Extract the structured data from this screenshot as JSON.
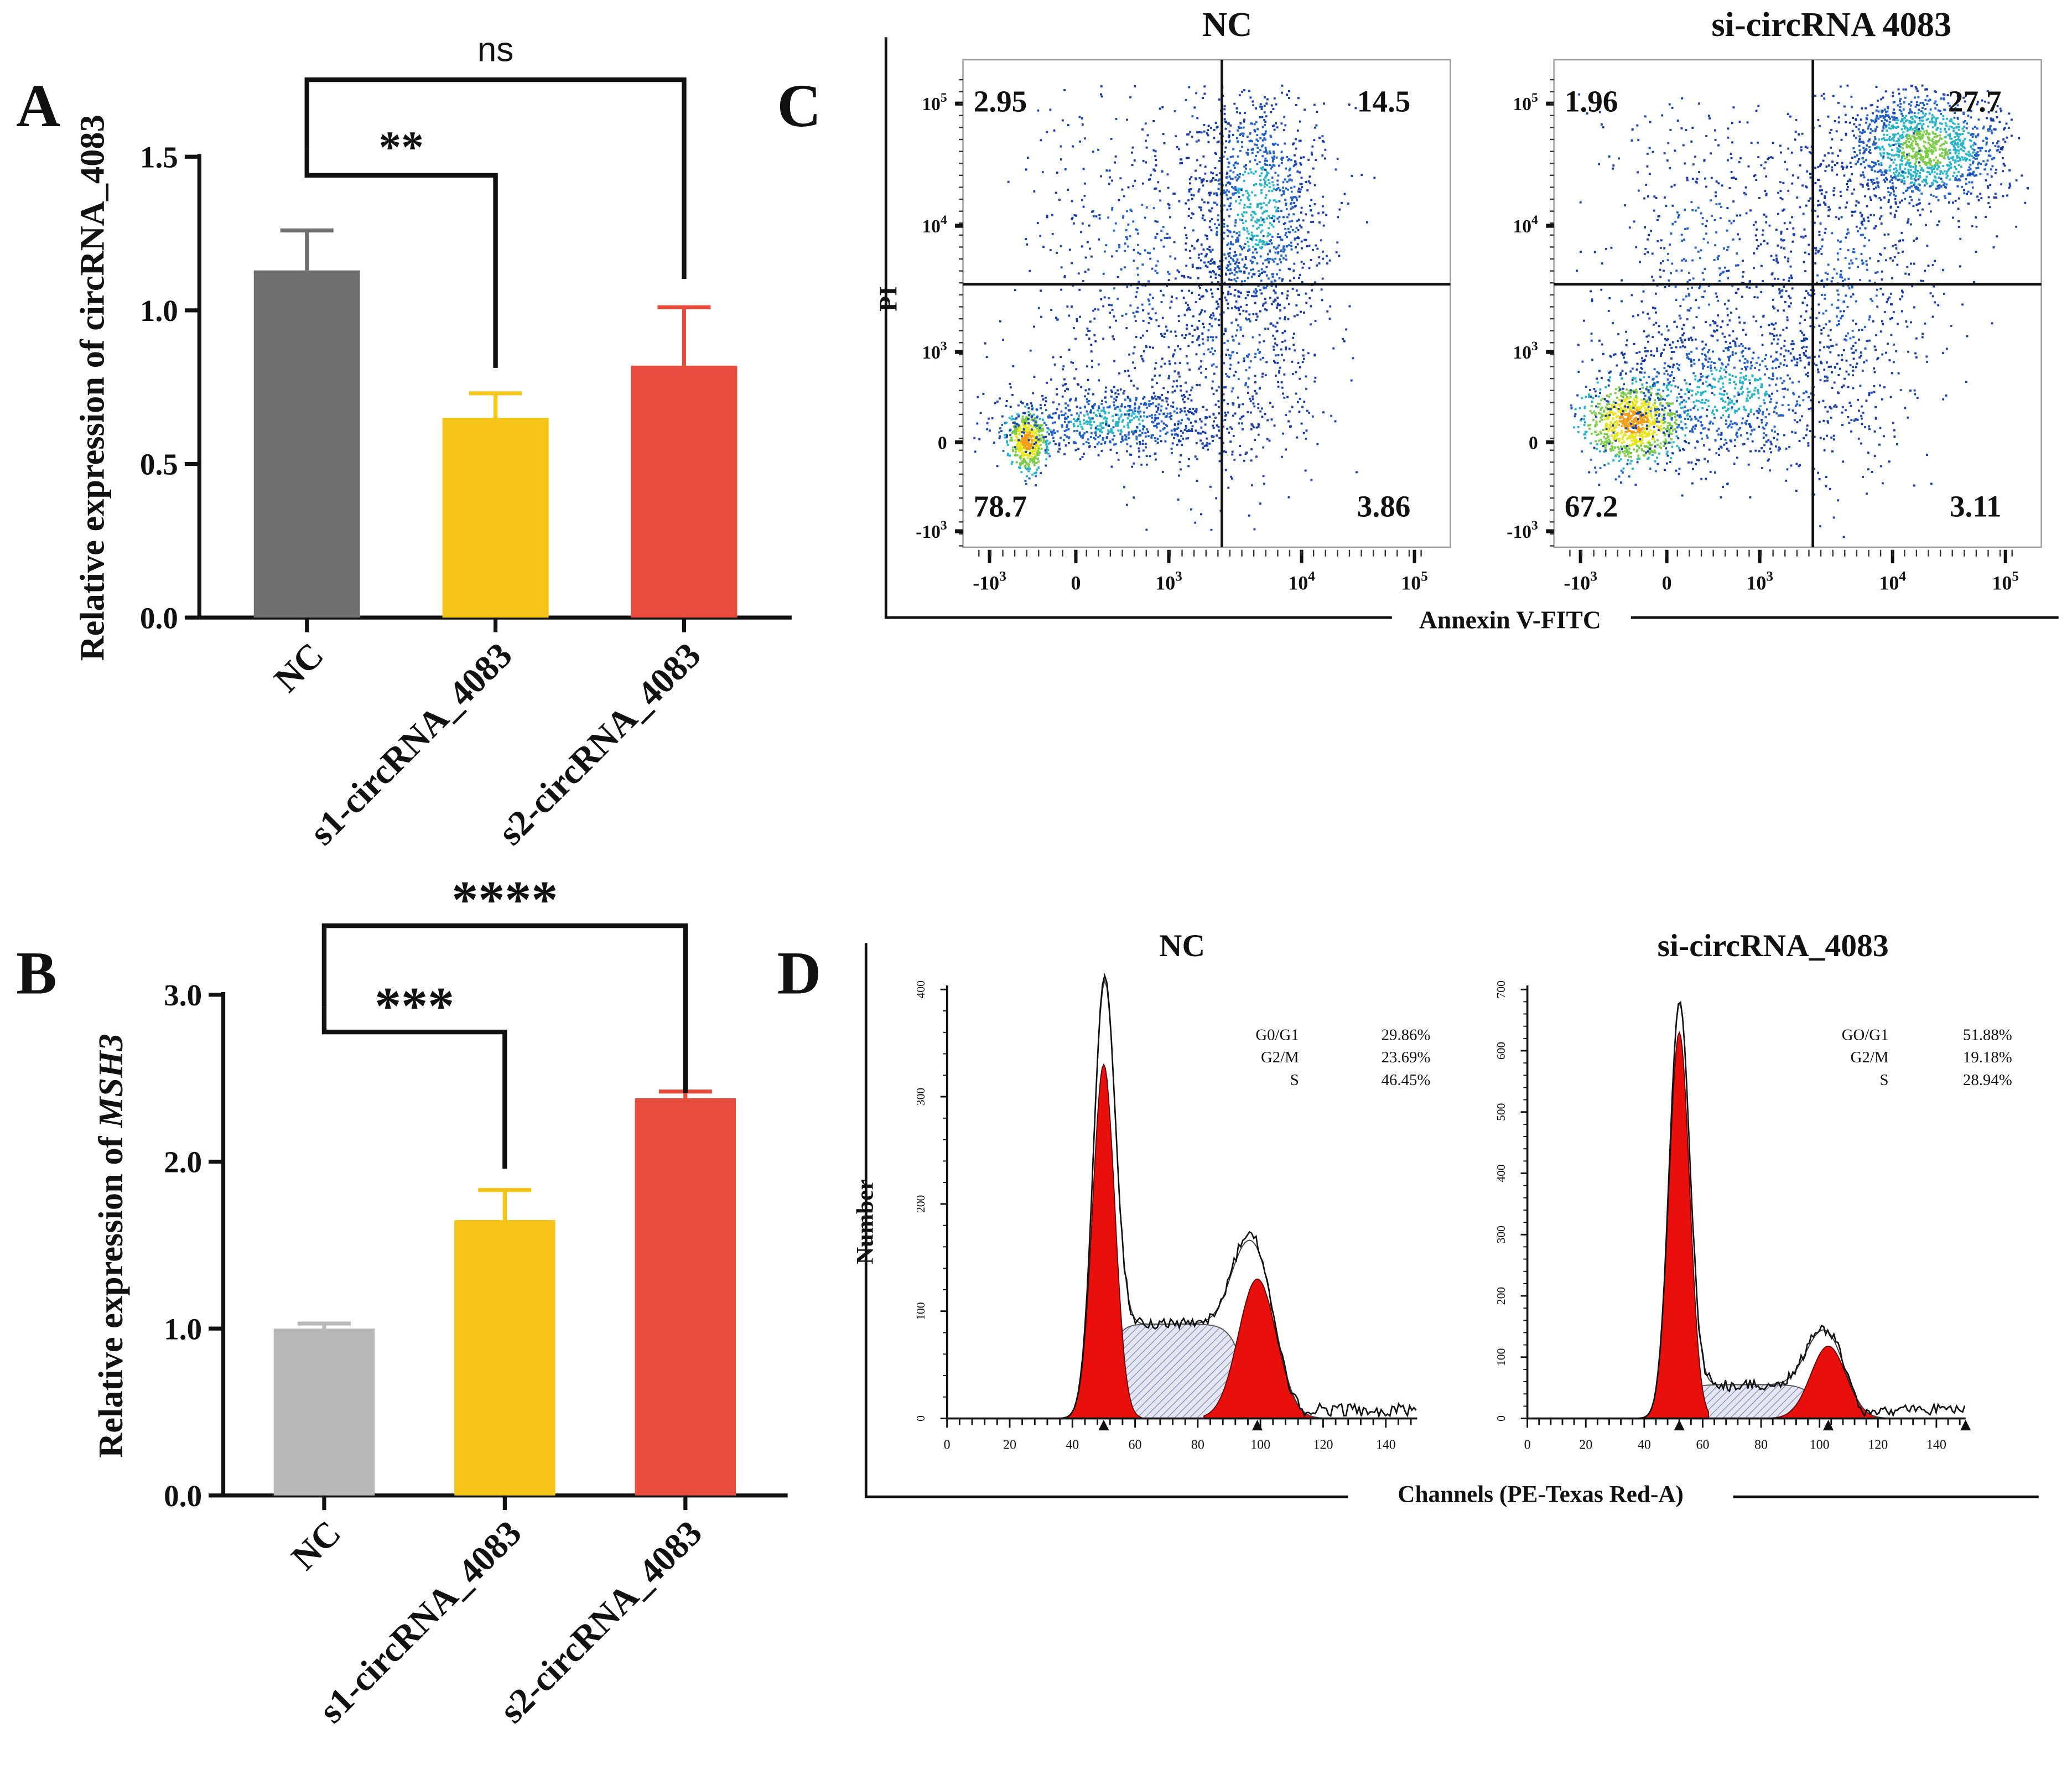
{
  "panel_letters": {
    "a": "A",
    "b": "B",
    "c": "C",
    "d": "D"
  },
  "chart_data": [
    {
      "panel": "A",
      "type": "bar",
      "categories": [
        "NC",
        "s1-circRNA_4083",
        "s2-circRNA_4083"
      ],
      "values": [
        1.13,
        0.65,
        0.82
      ],
      "errors": [
        0.13,
        0.08,
        0.19
      ],
      "colors": [
        "#707070",
        "#f5c518",
        "#e84c3d"
      ],
      "ylabel": "Relative expression of circRNA_4083",
      "ylim": [
        0,
        1.5
      ],
      "yticks": [
        "0.0",
        "0.5",
        "1.0",
        "1.5"
      ],
      "significance": [
        {
          "from": 0,
          "to": 1,
          "label": "**"
        },
        {
          "from": 0,
          "to": 2,
          "label": "ns"
        }
      ]
    },
    {
      "panel": "B",
      "type": "bar",
      "categories": [
        "NC",
        "s1-circRNA_4083",
        "s2-circRNA_4083"
      ],
      "values": [
        1.0,
        1.65,
        2.38
      ],
      "errors": [
        0.03,
        0.18,
        0.04
      ],
      "colors": [
        "#b9b9b9",
        "#f5c518",
        "#e84c3d"
      ],
      "ylabel_prefix": "Relative expression of ",
      "ylabel_gene": "MSH3",
      "ylim": [
        0,
        3
      ],
      "yticks": [
        "0.0",
        "1.0",
        "2.0",
        "3.0"
      ],
      "significance": [
        {
          "from": 0,
          "to": 1,
          "label": "***"
        },
        {
          "from": 0,
          "to": 2,
          "label": "****"
        }
      ]
    },
    {
      "panel": "C",
      "type": "scatter",
      "xlabel": "Annexin V-FITC",
      "ylabel": "PI",
      "xticks": [
        "-10^3",
        "0",
        "10^3",
        "10^4",
        "10^5"
      ],
      "yticks": [
        "10^5",
        "10^4",
        "10^3",
        "0",
        "-10^3"
      ],
      "plots": [
        {
          "title": "NC",
          "quadrants": {
            "upper_left": "2.95",
            "upper_right": "14.5",
            "lower_left": "78.7",
            "lower_right": "3.86"
          }
        },
        {
          "title": "si-circRNA  4083",
          "quadrants": {
            "upper_left": "1.96",
            "upper_right": "27.7",
            "lower_left": "67.2",
            "lower_right": "3.11"
          }
        }
      ]
    },
    {
      "panel": "D",
      "type": "area",
      "xlabel": "Channels (PE-Texas Red-A)",
      "ylabel": "Number",
      "xlim": [
        0,
        150
      ],
      "xticks": [
        "0",
        "20",
        "40",
        "60",
        "80",
        "100",
        "120",
        "140"
      ],
      "plots": [
        {
          "title": "NC",
          "ylim": [
            0,
            400
          ],
          "yticks": [
            "0",
            "100",
            "200",
            "300",
            "400"
          ],
          "g1_peak": {
            "channel": 50,
            "count": 330
          },
          "g2_peak": {
            "channel": 99,
            "count": 130
          },
          "s_plateau": 88,
          "total_peak": 378,
          "total_g2": 185,
          "stats": [
            {
              "phase": "G0/G1",
              "value": "29.86%"
            },
            {
              "phase": "G2/M",
              "value": "23.69%"
            },
            {
              "phase": "S",
              "value": "46.45%"
            }
          ]
        },
        {
          "title": "si-circRNA_4083",
          "ylim": [
            0,
            700
          ],
          "yticks": [
            "0",
            "100",
            "200",
            "300",
            "400",
            "500",
            "600",
            "700"
          ],
          "g1_peak": {
            "channel": 52,
            "count": 630
          },
          "g2_peak": {
            "channel": 103,
            "count": 118
          },
          "s_plateau": 55,
          "total_peak": 660,
          "total_g2": 160,
          "stats": [
            {
              "phase": "GO/G1",
              "value": "51.88%"
            },
            {
              "phase": "G2/M",
              "value": "19.18%"
            },
            {
              "phase": "S",
              "value": "28.94%"
            }
          ]
        }
      ]
    }
  ]
}
